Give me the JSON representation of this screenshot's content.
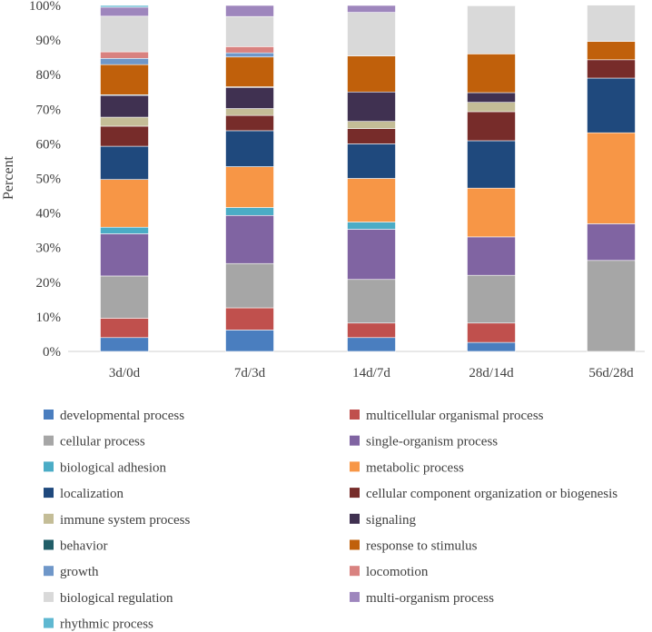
{
  "chart_data": {
    "type": "stacked-bar",
    "title": "",
    "xlabel": "",
    "ylabel": "Percent",
    "ylim": [
      0,
      100
    ],
    "ytick_labels": [
      "0%",
      "10%",
      "20%",
      "30%",
      "40%",
      "50%",
      "60%",
      "70%",
      "80%",
      "90%",
      "100%"
    ],
    "grid": false,
    "legend_position": "bottom",
    "categories": [
      "3d/0d",
      "7d/3d",
      "14d/7d",
      "28d/14d",
      "56d/28d"
    ],
    "series": [
      {
        "name": "developmental process",
        "color": "#4a7ebf",
        "values": [
          4.0,
          6.2,
          4.0,
          2.6,
          0
        ]
      },
      {
        "name": "multicellular organismal process",
        "color": "#c0504d",
        "values": [
          5.6,
          6.4,
          4.2,
          5.6,
          0
        ]
      },
      {
        "name": "cellular process",
        "color": "#a6a6a6",
        "values": [
          12.2,
          12.8,
          12.6,
          13.8,
          26.3
        ]
      },
      {
        "name": "single-organism process",
        "color": "#8064a2",
        "values": [
          12.2,
          13.9,
          14.5,
          11.1,
          10.6
        ]
      },
      {
        "name": "biological adhesion",
        "color": "#4bacc6",
        "values": [
          1.9,
          2.3,
          2.1,
          0,
          0
        ]
      },
      {
        "name": "metabolic process",
        "color": "#f79646",
        "values": [
          13.8,
          11.8,
          12.6,
          14.1,
          26.3
        ]
      },
      {
        "name": "localization",
        "color": "#1f497d",
        "values": [
          9.6,
          10.4,
          10.0,
          13.7,
          15.8
        ]
      },
      {
        "name": "cellular component organization or biogenesis",
        "color": "#772c2a",
        "values": [
          5.8,
          4.4,
          4.4,
          8.4,
          5.3
        ]
      },
      {
        "name": "immune system process",
        "color": "#c4bd97",
        "values": [
          2.6,
          2.0,
          2.1,
          2.7,
          0
        ]
      },
      {
        "name": "signaling",
        "color": "#403151",
        "values": [
          6.3,
          6.1,
          8.5,
          2.8,
          0
        ]
      },
      {
        "name": "behavior",
        "color": "#215e68",
        "values": [
          0.2,
          0.2,
          0,
          0,
          0
        ]
      },
      {
        "name": "response to stimulus",
        "color": "#c0600b",
        "values": [
          8.7,
          8.6,
          10.4,
          11.2,
          5.3
        ]
      },
      {
        "name": "growth",
        "color": "#6f97c9",
        "values": [
          1.8,
          1.2,
          0,
          0,
          0
        ]
      },
      {
        "name": "locomotion",
        "color": "#d98280",
        "values": [
          1.9,
          1.8,
          0,
          0,
          0
        ]
      },
      {
        "name": "biological regulation",
        "color": "#d9d9d9",
        "values": [
          10.3,
          8.7,
          12.6,
          13.9,
          10.5
        ]
      },
      {
        "name": "multi-organism process",
        "color": "#9e86bd",
        "values": [
          2.6,
          3.2,
          2.0,
          0,
          0
        ]
      },
      {
        "name": "rhythmic process",
        "color": "#5fb8d1",
        "values": [
          0.5,
          0,
          0,
          0,
          0
        ]
      }
    ]
  }
}
